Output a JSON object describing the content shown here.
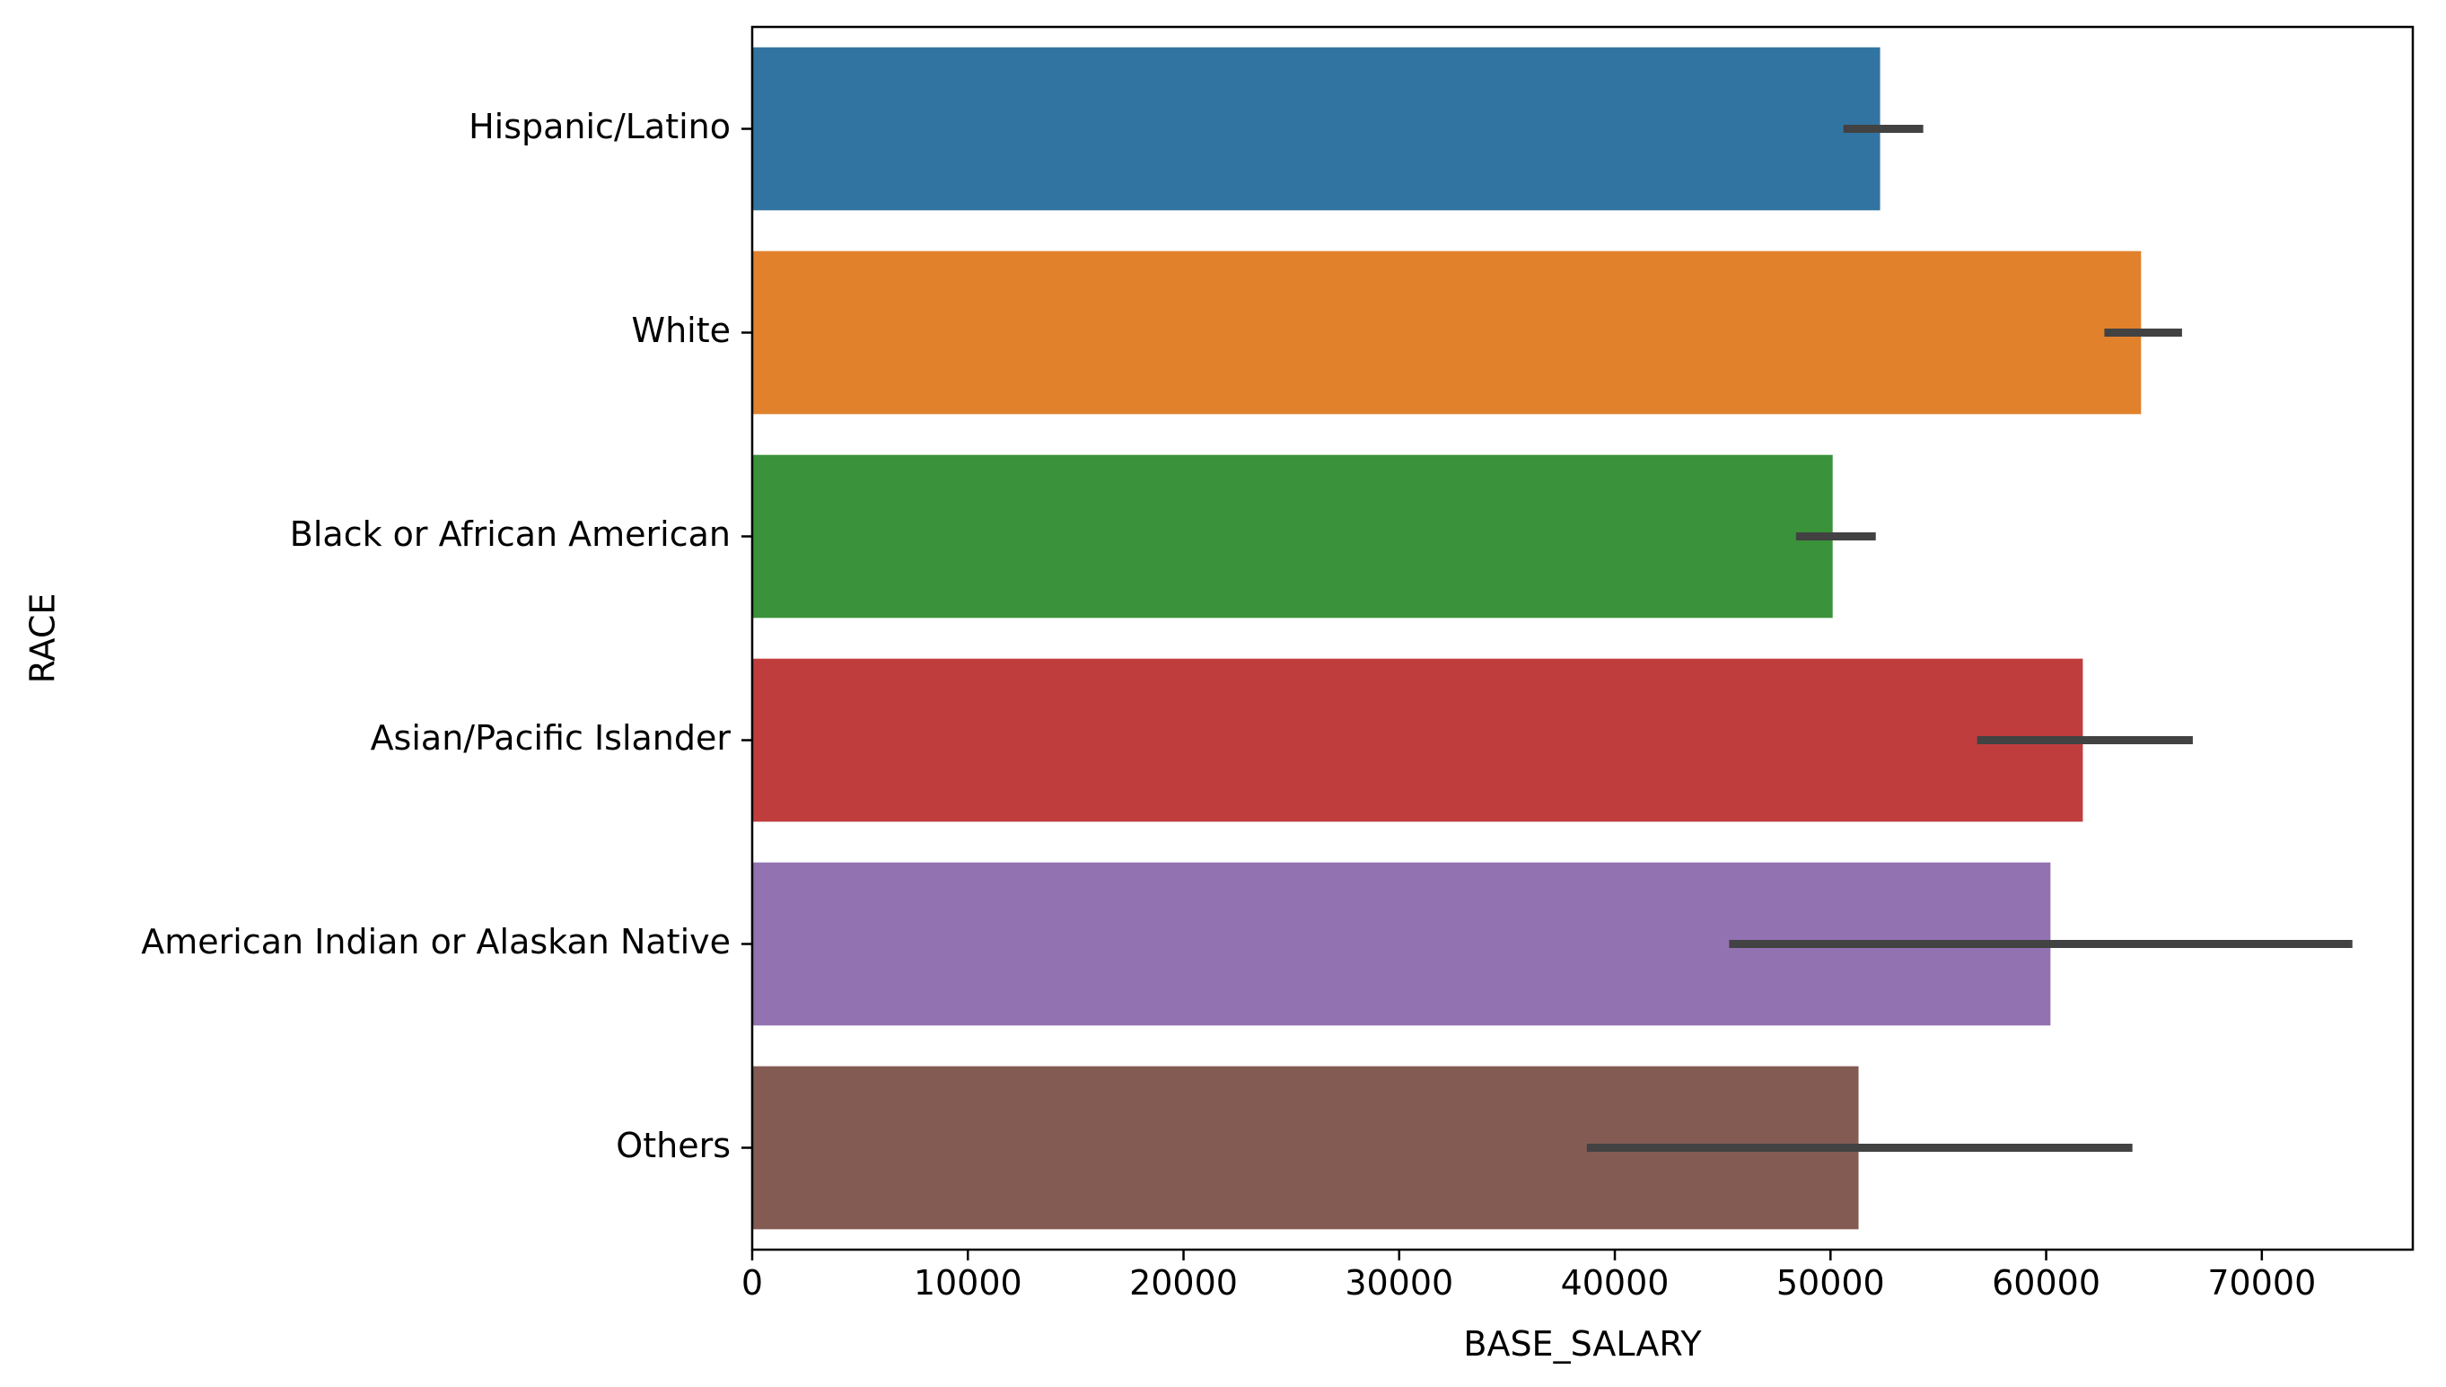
{
  "chart_data": {
    "type": "bar",
    "orientation": "horizontal",
    "xlabel": "BASE_SALARY",
    "ylabel": "RACE",
    "xlim": [
      0,
      77000
    ],
    "xticks": [
      0,
      10000,
      20000,
      30000,
      40000,
      50000,
      60000,
      70000
    ],
    "xtick_labels": [
      "0",
      "10000",
      "20000",
      "30000",
      "40000",
      "50000",
      "60000",
      "70000"
    ],
    "grid": false,
    "legend": "none",
    "categories": [
      "Hispanic/Latino",
      "White",
      "Black or African American",
      "Asian/Pacific Islander",
      "American Indian or Alaskan Native",
      "Others"
    ],
    "values": [
      52300,
      64400,
      50100,
      61700,
      60200,
      51300
    ],
    "error_low": [
      50600,
      62700,
      48400,
      56800,
      45300,
      38700
    ],
    "error_high": [
      54300,
      66300,
      52100,
      66800,
      74200,
      64000
    ],
    "colors": [
      "#3274a1",
      "#e1812c",
      "#3a923a",
      "#c03d3e",
      "#9372b2",
      "#845b53"
    ],
    "error_color": "#424242"
  }
}
